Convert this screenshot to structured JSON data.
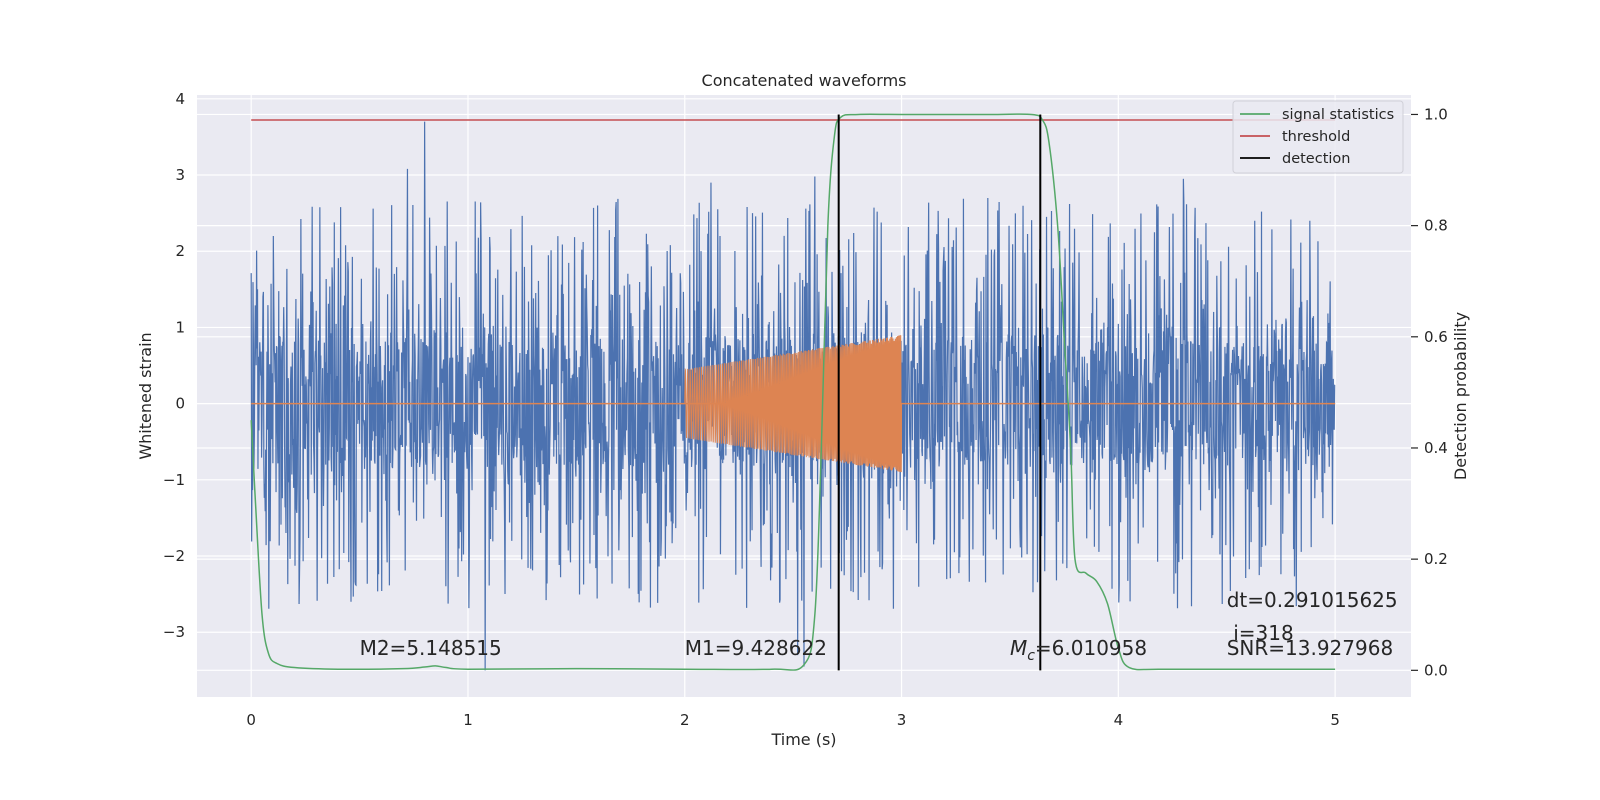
{
  "chart_data": {
    "type": "line",
    "title": "Concatenated waveforms",
    "xlabel": "Time (s)",
    "ylabel": "Whitened strain",
    "y2label": "Detection probability",
    "xlim": [
      -0.25,
      5.35
    ],
    "ylim": [
      -3.85,
      4.05
    ],
    "y2lim": [
      -0.048,
      1.035
    ],
    "x_ticks": [
      0,
      1,
      2,
      3,
      4,
      5
    ],
    "y_ticks": [
      -3,
      -2,
      -1,
      0,
      1,
      2,
      3,
      4
    ],
    "y2_ticks": [
      0.0,
      0.2,
      0.4,
      0.6,
      0.8,
      1.0
    ],
    "x_tick_labels": [
      "0",
      "1",
      "2",
      "3",
      "4",
      "5"
    ],
    "y_tick_labels": [
      "−3",
      "−2",
      "−1",
      "0",
      "1",
      "2",
      "3",
      "4"
    ],
    "y2_tick_labels": [
      "0.0",
      "0.2",
      "0.4",
      "0.6",
      "0.8",
      "1.0"
    ],
    "grid": true,
    "legend_placement": "top-right",
    "colors": {
      "background": "#eaeaf2",
      "noise": "#4c72b0",
      "waveform": "#dd8452",
      "signal_statistics": "#55a868",
      "threshold": "#c44e52",
      "detection": "#000000",
      "grid": "#ffffff"
    },
    "series": [
      {
        "name": "",
        "role": "noise",
        "x_range": [
          0,
          5
        ],
        "typical_band": [
          -0.65,
          0.8
        ],
        "peak_max": 3.7,
        "peak_min": -3.55,
        "notable_peaks": [
          [
            0.8,
            3.7
          ],
          [
            0.72,
            3.08
          ],
          [
            2.12,
            2.9
          ],
          [
            2.6,
            2.98
          ],
          [
            4.3,
            2.95
          ],
          [
            1.08,
            -3.5
          ],
          [
            2.55,
            -3.45
          ],
          [
            2.52,
            -3.3
          ]
        ]
      },
      {
        "name": "",
        "role": "injected waveform",
        "x_range": [
          2,
          3
        ],
        "amplitude_start": 0.45,
        "amplitude_end": 0.9,
        "baseline": 0
      },
      {
        "name": "signal statistics",
        "axis": "right",
        "x": [
          0,
          0.02,
          0.05,
          0.08,
          0.12,
          0.2,
          0.4,
          0.7,
          0.8,
          0.85,
          0.9,
          1.0,
          1.5,
          2.0,
          2.4,
          2.55,
          2.6,
          2.63,
          2.66,
          2.69,
          2.72,
          2.8,
          3.0,
          3.4,
          3.6,
          3.65,
          3.68,
          3.72,
          3.75,
          3.78,
          3.8,
          3.85,
          3.9,
          3.95,
          4.0,
          4.05,
          4.2,
          4.6,
          5.0
        ],
        "y": [
          0.45,
          0.3,
          0.1,
          0.03,
          0.012,
          0.005,
          0.002,
          0.003,
          0.006,
          0.008,
          0.005,
          0.002,
          0.003,
          0.002,
          0.002,
          0.01,
          0.1,
          0.4,
          0.8,
          0.96,
          0.995,
          1.0,
          1.0,
          1.0,
          1.0,
          0.99,
          0.95,
          0.8,
          0.6,
          0.4,
          0.2,
          0.175,
          0.16,
          0.12,
          0.04,
          0.005,
          0.002,
          0.002,
          0.002
        ]
      },
      {
        "name": "threshold",
        "axis": "right",
        "value": 0.99,
        "x_range": [
          0,
          5
        ]
      },
      {
        "name": "detection",
        "axis": "right",
        "x_positions": [
          2.71,
          3.64
        ],
        "y_range": [
          0,
          1.0
        ]
      }
    ],
    "legend": [
      "signal statistics",
      "threshold",
      "detection"
    ],
    "annotations": [
      {
        "id": "m2",
        "text": "M2=5.148515",
        "x": 0.5,
        "y": -3.3
      },
      {
        "id": "m1",
        "text": "M1=9.428622",
        "x": 2.0,
        "y": -3.3
      },
      {
        "id": "mc",
        "prefix": "M",
        "subscript": "c",
        "text": "=6.010958",
        "x": 3.5,
        "y": -3.3
      },
      {
        "id": "dt",
        "text": "dt=0.291015625",
        "x": 4.5,
        "y": -2.67
      },
      {
        "id": "i",
        "text": "i=318",
        "x": 4.53,
        "y": -3.1
      },
      {
        "id": "snr",
        "text": "SNR=13.927968",
        "x": 4.5,
        "y": -3.3
      }
    ]
  }
}
